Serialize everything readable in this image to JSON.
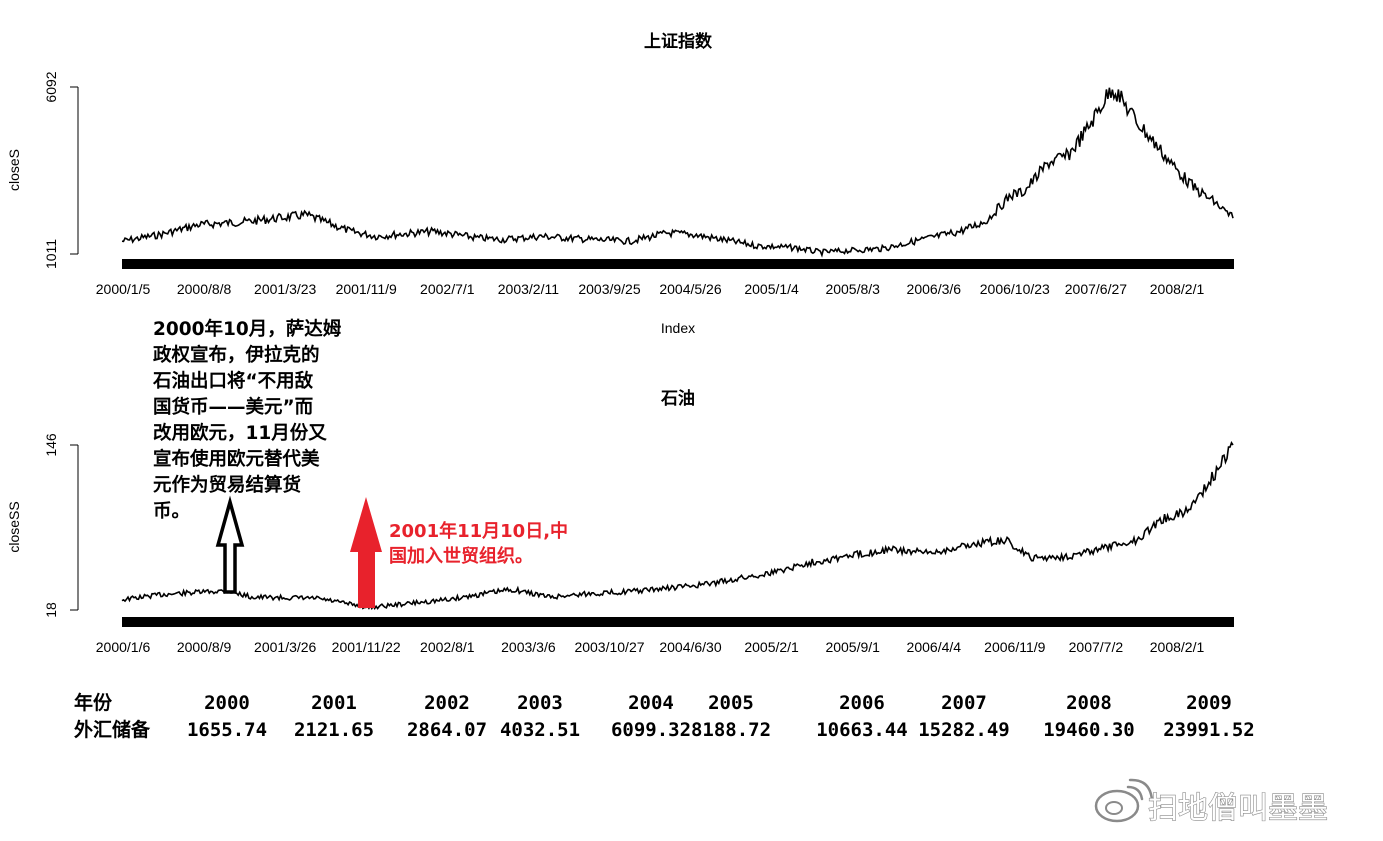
{
  "chart_data": [
    {
      "type": "line",
      "title": "上证指数",
      "xlabel": "Index",
      "ylabel": "closeS",
      "y_ticks": [
        "1011",
        "6092"
      ],
      "ylim": [
        1011,
        6092
      ],
      "x_tick_labels": [
        "2000/1/5",
        "2000/8/8",
        "2001/3/23",
        "2001/11/9",
        "2002/7/1",
        "2003/2/11",
        "2003/9/25",
        "2004/5/26",
        "2005/1/4",
        "2005/8/3",
        "2006/3/6",
        "2006/10/23",
        "2007/6/27",
        "2008/2/1"
      ],
      "x": [
        2000.0,
        2000.3,
        2000.6,
        2001.0,
        2001.45,
        2001.8,
        2002.0,
        2002.45,
        2002.8,
        2003.0,
        2003.3,
        2003.7,
        2004.0,
        2004.3,
        2004.5,
        2004.8,
        2005.0,
        2005.3,
        2005.5,
        2006.0,
        2006.3,
        2006.6,
        2006.8,
        2007.0,
        2007.1,
        2007.3,
        2007.45,
        2007.6,
        2007.8,
        2008.0,
        2008.3,
        2008.45,
        2008.6,
        2008.75
      ],
      "values": [
        1400,
        1600,
        1900,
        2000,
        2200,
        1700,
        1550,
        1700,
        1500,
        1450,
        1550,
        1450,
        1400,
        1650,
        1600,
        1400,
        1260,
        1200,
        1060,
        1180,
        1450,
        1700,
        2000,
        2800,
        2900,
        3800,
        4000,
        4800,
        6092,
        5000,
        3600,
        3000,
        2600,
        2100
      ]
    },
    {
      "type": "line",
      "title": "石油",
      "xlabel": "",
      "ylabel": "closeSS",
      "y_ticks": [
        "18",
        "146"
      ],
      "ylim": [
        18,
        146
      ],
      "x_tick_labels": [
        "2000/1/6",
        "2000/8/9",
        "2001/3/26",
        "2001/11/22",
        "2002/8/1",
        "2003/3/6",
        "2003/10/27",
        "2004/6/30",
        "2005/2/1",
        "2005/9/1",
        "2006/4/4",
        "2006/11/9",
        "2007/7/2",
        "2008/2/1"
      ],
      "x": [
        2000.0,
        2000.3,
        2000.8,
        2001.0,
        2001.5,
        2001.9,
        2002.0,
        2002.5,
        2003.0,
        2003.3,
        2003.5,
        2004.0,
        2004.5,
        2005.0,
        2005.3,
        2005.6,
        2005.9,
        2006.2,
        2006.6,
        2006.8,
        2007.0,
        2007.3,
        2007.6,
        2007.8,
        2008.0,
        2008.2,
        2008.4,
        2008.55
      ],
      "values": [
        26,
        30,
        33,
        28,
        27,
        20,
        21,
        26,
        34,
        28,
        30,
        33,
        38,
        47,
        55,
        60,
        65,
        62,
        70,
        72,
        58,
        60,
        67,
        72,
        88,
        95,
        122,
        146
      ]
    }
  ],
  "annotations": {
    "iraq_lines": [
      "2000年10月，萨达姆",
      "政权宣布，伊拉克的",
      "石油出口将“不用敌",
      "国货币——美元”而",
      "改用欧元，11月份又",
      "宣布使用欧元替代美",
      "元作为贸易结算货",
      "币。"
    ],
    "wto_lines": [
      "2001年11月10日,中",
      "国加入世贸组织。"
    ]
  },
  "reserves": {
    "row1_label": "年份",
    "row2_label": "外汇储备",
    "years": [
      "2000",
      "2001",
      "2002",
      "2003",
      "2004",
      "2005",
      "2006",
      "2007",
      "2008",
      "2009"
    ],
    "values": [
      "1655.74",
      "2121.65",
      "2864.07",
      "4032.51",
      "6099.32",
      "8188.72",
      "10663.44",
      "15282.49",
      "19460.30",
      "23991.52"
    ]
  },
  "watermark": "扫地僧叫墨墨",
  "colors": {
    "line": "#000000",
    "arrow_red": "#e8222c",
    "watermark": "#8a8a8a"
  }
}
